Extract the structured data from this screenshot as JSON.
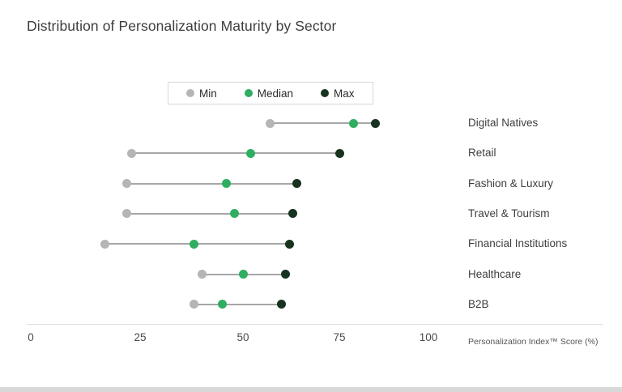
{
  "title": "Distribution of Personalization Maturity by Sector",
  "legend": {
    "items": [
      {
        "label": "Min",
        "color": "#b5b5b5"
      },
      {
        "label": "Median",
        "color": "#2fae62"
      },
      {
        "label": "Max",
        "color": "#17331f"
      }
    ]
  },
  "axis": {
    "tick_labels": [
      "0",
      "25",
      "50",
      "75",
      "100"
    ],
    "label": "Personalization Index™ Score (%)"
  },
  "chart_data": {
    "type": "scatter",
    "subtype": "dot-range",
    "title": "Distribution of Personalization Maturity by Sector",
    "xlabel": "Personalization Index™ Score (%)",
    "ylabel": "",
    "xlim": [
      0,
      100
    ],
    "xticks": [
      0,
      25,
      50,
      75,
      100
    ],
    "grid": false,
    "legend_position": "top-center",
    "categories": [
      "Digital Natives",
      "Retail",
      "Fashion & Luxury",
      "Travel & Tourism",
      "Financial Institutions",
      "Healthcare",
      "B2B"
    ],
    "series": [
      {
        "name": "Min",
        "color": "#b5b5b5",
        "values": [
          57,
          23,
          22,
          22,
          17,
          40,
          38
        ]
      },
      {
        "name": "Median",
        "color": "#2fae62",
        "values": [
          79,
          52,
          46,
          48,
          38,
          50,
          45
        ]
      },
      {
        "name": "Max",
        "color": "#17331f",
        "values": [
          85,
          75,
          64,
          63,
          62,
          61,
          60
        ]
      }
    ]
  }
}
